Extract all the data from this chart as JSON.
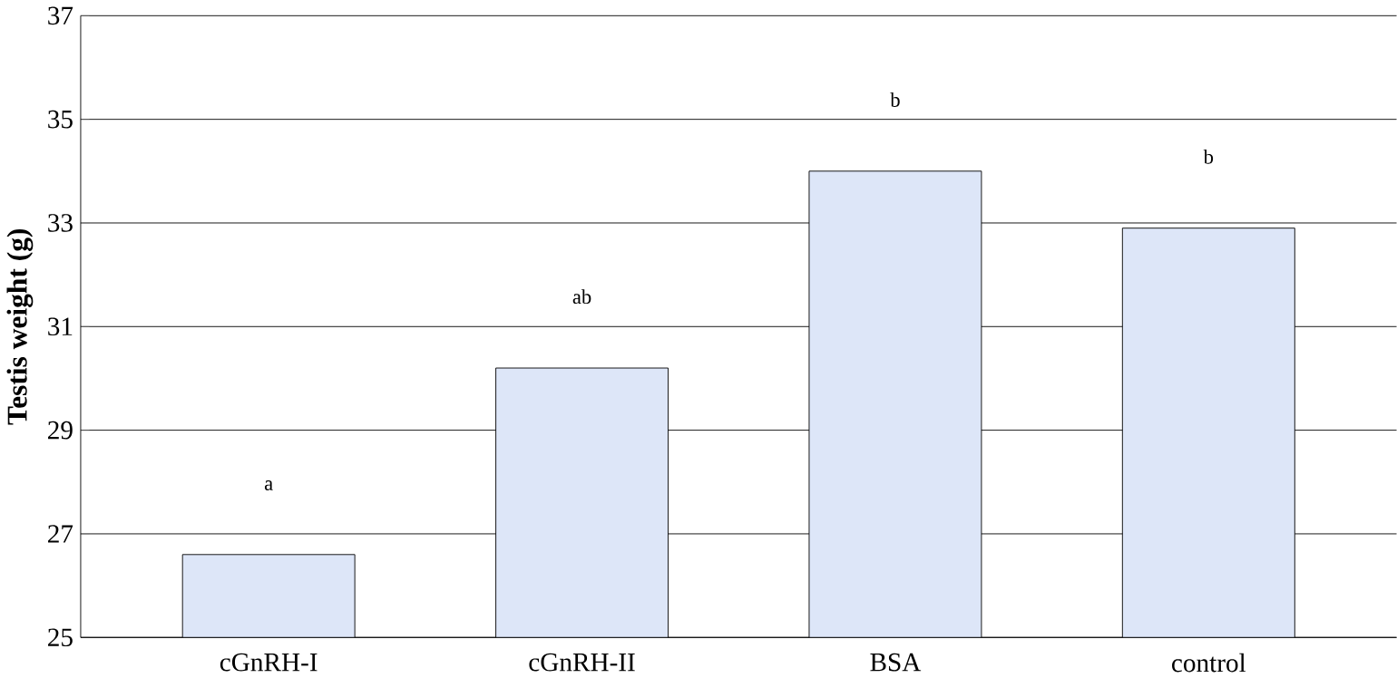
{
  "chart_data": {
    "type": "bar",
    "ylabel": "Testis weight (g)",
    "categories": [
      "cGnRH-I",
      "cGnRH-II",
      "BSA",
      "control"
    ],
    "values": [
      26.6,
      30.2,
      34.0,
      32.9
    ],
    "color": "#dde6f8",
    "ylim": [
      25,
      37
    ],
    "yticks": [
      25,
      27,
      29,
      31,
      33,
      35,
      37
    ],
    "grid": "y",
    "annotations": [
      "a",
      "ab",
      "b",
      "b"
    ]
  }
}
